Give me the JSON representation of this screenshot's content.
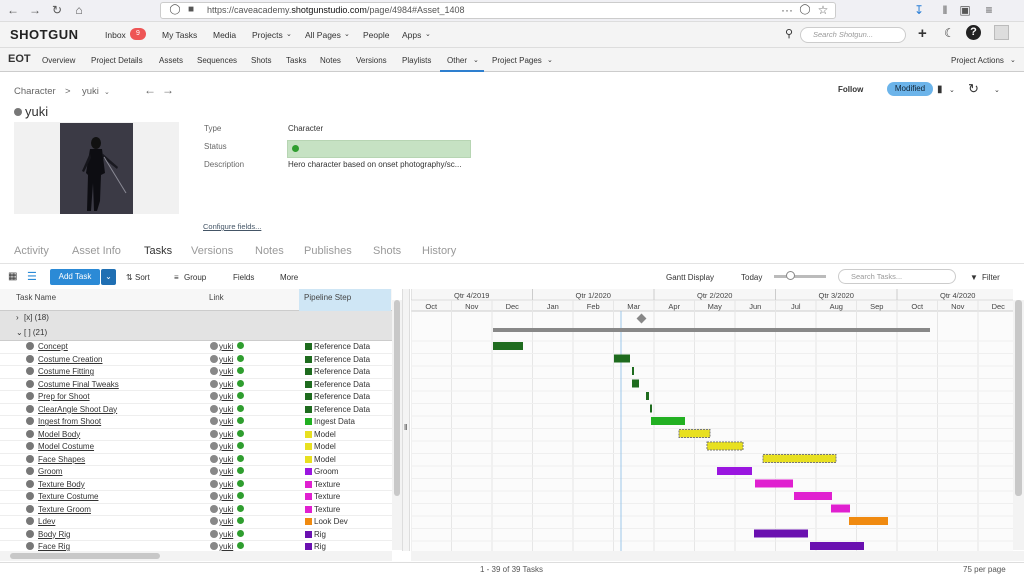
{
  "browser": {
    "url_prefix": "https://caveacademy.",
    "url_domain": "shotgunstudio.com",
    "url_path": "/page/4984#Asset_1408",
    "icons": [
      "back-icon",
      "forward-icon",
      "reload-icon",
      "home-icon",
      "shield-icon",
      "lock-icon",
      "more-icon",
      "pocket-icon",
      "star-icon",
      "download-icon",
      "library-icon",
      "sidebar-icon",
      "menu-icon"
    ]
  },
  "header": {
    "logo": "SHOTGUN",
    "inbox": "Inbox",
    "inbox_count": "9",
    "nav": [
      "My Tasks",
      "Media",
      "Projects",
      "All Pages",
      "People",
      "Apps"
    ],
    "search_placeholder": "Search Shotgun..."
  },
  "projectbar": {
    "project": "EOT",
    "tabs": [
      "Overview",
      "Project Details",
      "Assets",
      "Sequences",
      "Shots",
      "Tasks",
      "Notes",
      "Versions",
      "Playlists",
      "Other",
      "Project Pages"
    ],
    "actions": "Project Actions"
  },
  "asset": {
    "breadcrumb_type": "Character",
    "breadcrumb_sep": ">",
    "breadcrumb_name": "yuki",
    "name": "yuki",
    "follow": "Follow",
    "status_badge": "Modified",
    "fields": [
      {
        "label": "Type",
        "value": "Character"
      },
      {
        "label": "Status",
        "value": ""
      },
      {
        "label": "Description",
        "value": "Hero character based on onset photography/sc..."
      }
    ],
    "configure": "Configure fields..."
  },
  "detail_tabs": [
    "Activity",
    "Asset Info",
    "Tasks",
    "Versions",
    "Notes",
    "Publishes",
    "Shots",
    "History"
  ],
  "active_tab": "Tasks",
  "toolbar": {
    "add_task": "Add Task",
    "sort": "Sort",
    "group": "Group",
    "fields": "Fields",
    "more": "More",
    "gantt_display": "Gantt Display",
    "today": "Today",
    "search_placeholder": "Search Tasks...",
    "filter": "Filter"
  },
  "grid": {
    "columns": [
      "Task Name",
      "Link",
      "Pipeline Step"
    ],
    "group1": "[x] (18)",
    "group2": "[ ] (21)",
    "rows": [
      {
        "task": "Concept",
        "link": "yuki",
        "step": "Reference Data",
        "color": "#1e6b1e"
      },
      {
        "task": "Costume Creation",
        "link": "yuki",
        "step": "Reference Data",
        "color": "#1e6b1e"
      },
      {
        "task": "Costume Fitting",
        "link": "yuki",
        "step": "Reference Data",
        "color": "#1e6b1e"
      },
      {
        "task": "Costume Final Tweaks",
        "link": "yuki",
        "step": "Reference Data",
        "color": "#1e6b1e"
      },
      {
        "task": "Prep for Shoot",
        "link": "yuki",
        "step": "Reference Data",
        "color": "#1e6b1e"
      },
      {
        "task": "ClearAngle Shoot Day",
        "link": "yuki",
        "step": "Reference Data",
        "color": "#1e6b1e"
      },
      {
        "task": "Ingest from Shoot",
        "link": "yuki",
        "step": "Ingest Data",
        "color": "#22b022"
      },
      {
        "task": "Model Body",
        "link": "yuki",
        "step": "Model",
        "color": "#e8e020"
      },
      {
        "task": "Model Costume",
        "link": "yuki",
        "step": "Model",
        "color": "#e8e020"
      },
      {
        "task": "Face Shapes",
        "link": "yuki",
        "step": "Model",
        "color": "#e8e020"
      },
      {
        "task": "Groom",
        "link": "yuki",
        "step": "Groom",
        "color": "#9a16e0"
      },
      {
        "task": "Texture Body",
        "link": "yuki",
        "step": "Texture",
        "color": "#e020d0"
      },
      {
        "task": "Texture Costume",
        "link": "yuki",
        "step": "Texture",
        "color": "#e020d0"
      },
      {
        "task": "Texture Groom",
        "link": "yuki",
        "step": "Texture",
        "color": "#e020d0"
      },
      {
        "task": "Ldev",
        "link": "yuki",
        "step": "Look Dev",
        "color": "#f08a10"
      },
      {
        "task": "Body Rig",
        "link": "yuki",
        "step": "Rig",
        "color": "#6a10b0"
      },
      {
        "task": "Face Rig",
        "link": "yuki",
        "step": "Rig",
        "color": "#6a10b0"
      }
    ]
  },
  "gantt": {
    "quarters": [
      "Qtr 4/2019",
      "Qtr 1/2020",
      "Qtr 2/2020",
      "Qtr 3/2020",
      "Qtr 4/2020"
    ],
    "months": [
      "Oct",
      "Nov",
      "Dec",
      "Jan",
      "Feb",
      "Mar",
      "Apr",
      "May",
      "Jun",
      "Jul",
      "Aug",
      "Sep",
      "Oct",
      "Nov",
      "Dec"
    ]
  },
  "footer": {
    "count": "1 - 39 of 39 Tasks",
    "per_page": "75 per page"
  }
}
